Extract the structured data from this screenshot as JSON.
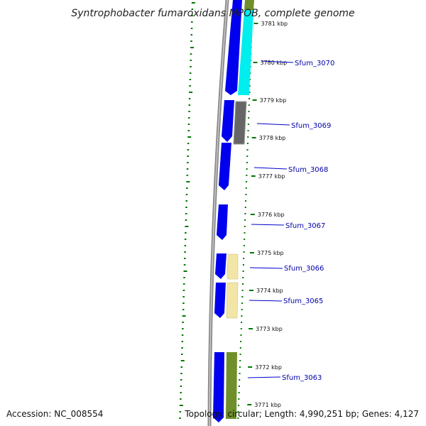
{
  "title": "Syntrophobacter fumaroxidans MPOB, complete genome",
  "accession_label": "Accession:",
  "accession_value": "NC_008554",
  "topology_text": "Topology: circular; Length: 4,990,251 bp; Genes: 4,127",
  "ticks": [
    "3781 kbp",
    "3780 kbp",
    "3779 kbp",
    "3778 kbp",
    "3777 kbp",
    "3776 kbp",
    "3775 kbp",
    "3774 kbp",
    "3773 kbp",
    "3772 kbp",
    "3771 kbp"
  ],
  "genes": [
    "Sfum_3070",
    "Sfum_3069",
    "Sfum_3068",
    "Sfum_3067",
    "Sfum_3066",
    "Sfum_3065",
    "Sfum_3063"
  ],
  "colors": {
    "cds_forward": "#0000ee",
    "backbone": "#808080",
    "label_line": "#0000cc",
    "gc_dots": "#007700",
    "cyan": "#00eeee",
    "olive": "#6f8f2a",
    "gray": "#666666",
    "khaki": "#f2e6a6"
  }
}
